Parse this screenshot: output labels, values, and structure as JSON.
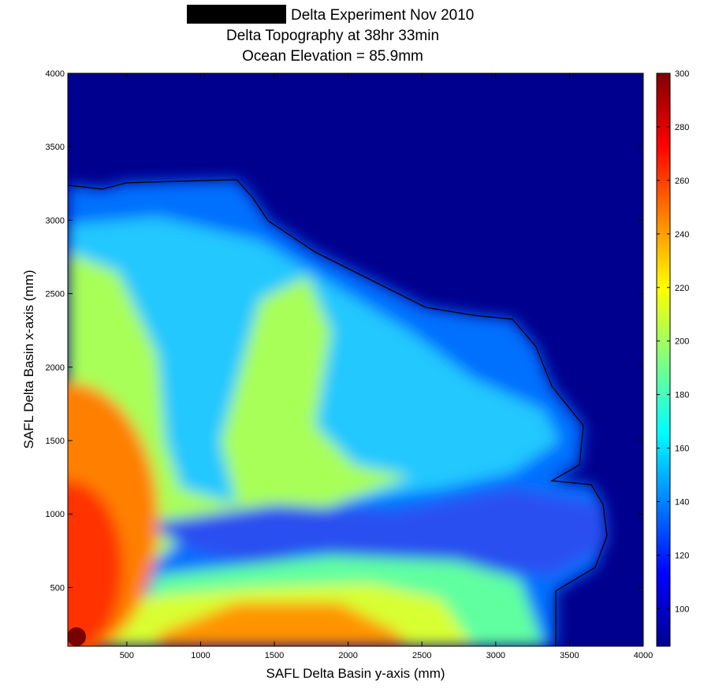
{
  "chart_data": {
    "type": "heatmap",
    "title": "Delta Experiment Nov 2010",
    "subtitle": "Delta Topography at 38hr 33min",
    "annotation": "Ocean Elevation = 85.9mm",
    "x_label": "SAFL Delta Basin y-axis (mm)",
    "y_label": "SAFL Delta Basin x-axis (mm)",
    "xlim": [
      100,
      4000
    ],
    "xticks": [
      500,
      1000,
      1500,
      2000,
      2500,
      3000,
      3500,
      4000
    ],
    "ylim": [
      100,
      4000
    ],
    "yticks": [
      500,
      1000,
      1500,
      2000,
      2500,
      3000,
      3500,
      4000
    ],
    "colormap": "jet",
    "clim": [
      86,
      300
    ],
    "cticks": [
      100,
      120,
      140,
      160,
      180,
      200,
      220,
      240,
      260,
      280,
      300
    ]
  }
}
